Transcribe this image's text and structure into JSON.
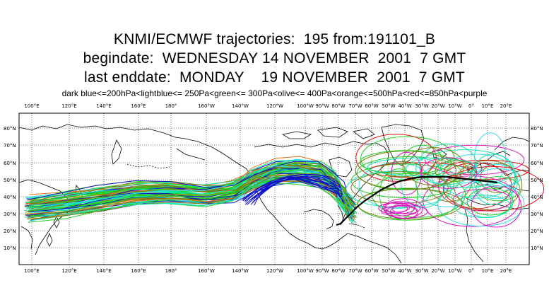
{
  "title": {
    "line1": "KNMI/ECMWF trajectories:  195 from:191101_B",
    "line2": "begindate:  WEDNESDAY 14 NOVEMBER  2001  7 GMT",
    "line3": "last enddate:  MONDAY    19 NOVEMBER  2001  7 GMT"
  },
  "legend": "dark blue<=200hPa<lightblue<= 250Pa<green<= 300Pa<olive<= 400Pa<orange<=500hPa<red<=850hPa<purple",
  "axes": {
    "lon_labels": [
      "100°E",
      "120°E",
      "140°E",
      "160°E",
      "180°",
      "160°W",
      "140°W",
      "120°W",
      "100°W",
      "90°W",
      "80°W",
      "70°W",
      "60°W",
      "50°W",
      "40°W",
      "30°W",
      "20°W",
      "10°W",
      "0°",
      "10°E",
      "20°E"
    ],
    "lat_labels": [
      "80°N",
      "70°N",
      "60°N",
      "50°N",
      "40°N",
      "30°N",
      "20°N",
      "10°N"
    ]
  },
  "colors": {
    "dark_blue": "#1010c8",
    "light_blue": "#30e0e8",
    "green": "#20d020",
    "olive": "#7a7a10",
    "orange": "#e87010",
    "red": "#e01010",
    "purple": "#e010c0",
    "bundle_cyan": "#10e8b0"
  }
}
